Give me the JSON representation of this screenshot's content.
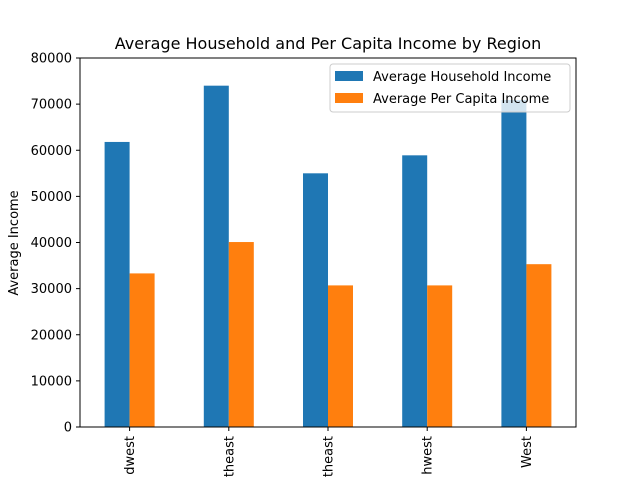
{
  "chart_data": {
    "type": "bar",
    "title": "Average Household and Per Capita Income by Region",
    "xlabel": "",
    "ylabel": "Average Income",
    "categories": [
      "dwest",
      "theast",
      "theast",
      "hwest",
      "West"
    ],
    "series": [
      {
        "name": "Average Household Income",
        "color": "#1f77b4",
        "values": [
          61800,
          74000,
          55000,
          58900,
          70900
        ]
      },
      {
        "name": "Average Per Capita Income",
        "color": "#ff7f0e",
        "values": [
          33300,
          40100,
          30700,
          30700,
          35300
        ]
      }
    ],
    "ylim": [
      0,
      80000
    ],
    "yticks": [
      "0",
      "10000",
      "20000",
      "30000",
      "40000",
      "50000",
      "60000",
      "70000",
      "80000"
    ],
    "grid": false,
    "legend_position": "top-right"
  }
}
